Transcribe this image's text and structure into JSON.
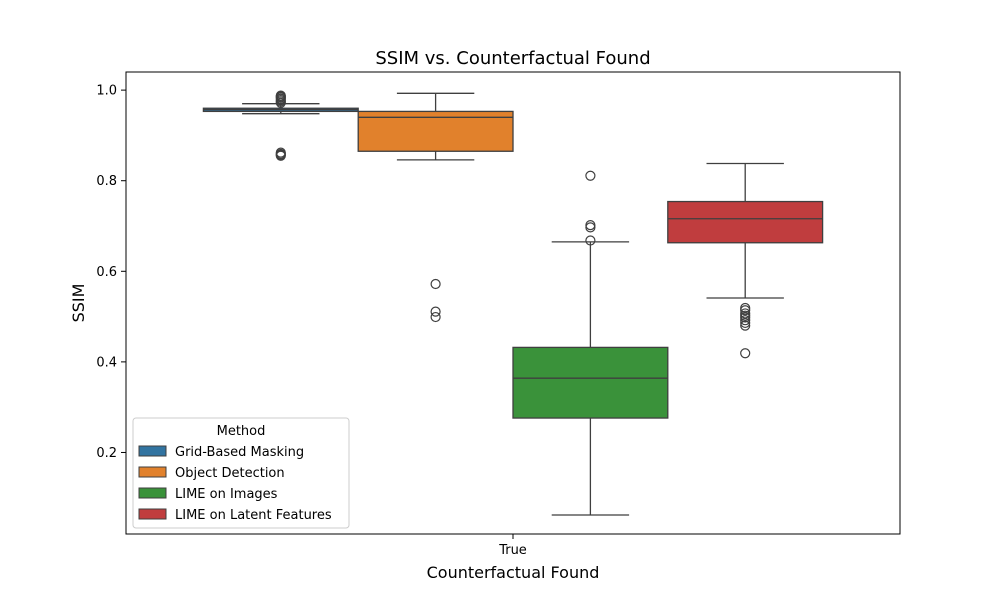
{
  "chart_data": {
    "type": "box",
    "title": "SSIM vs. Counterfactual Found",
    "xlabel": "Counterfactual Found",
    "ylabel": "SSIM",
    "categories": [
      "True"
    ],
    "ylim": [
      0.02,
      1.04
    ],
    "yticks": [
      0.2,
      0.4,
      0.6,
      0.8,
      1.0
    ],
    "ytick_labels": [
      "0.2",
      "0.4",
      "0.6",
      "0.8",
      "1.0"
    ],
    "grid": false,
    "legend": {
      "title": "Method",
      "position": "lower-left"
    },
    "series": [
      {
        "name": "Grid-Based Masking",
        "color": "#3274a1",
        "category": "True",
        "whisker_low": 0.948,
        "q1": 0.953,
        "median": 0.957,
        "q3": 0.96,
        "whisker_high": 0.97,
        "outliers": [
          0.978,
          0.981,
          0.984,
          0.986,
          0.988,
          0.975,
          0.972,
          0.862,
          0.859,
          0.857,
          0.855
        ]
      },
      {
        "name": "Object Detection",
        "color": "#e1812c",
        "category": "True",
        "whisker_low": 0.846,
        "q1": 0.865,
        "median": 0.94,
        "q3": 0.953,
        "whisker_high": 0.993,
        "outliers": [
          0.572,
          0.511,
          0.499
        ]
      },
      {
        "name": "LIME on Images",
        "color": "#3a923a",
        "category": "True",
        "whisker_low": 0.062,
        "q1": 0.276,
        "median": 0.364,
        "q3": 0.432,
        "whisker_high": 0.665,
        "outliers": [
          0.811,
          0.702,
          0.697,
          0.668
        ]
      },
      {
        "name": "LIME on Latent Features",
        "color": "#c03d3e",
        "category": "True",
        "whisker_low": 0.541,
        "q1": 0.663,
        "median": 0.716,
        "q3": 0.754,
        "whisker_high": 0.838,
        "outliers": [
          0.519,
          0.514,
          0.507,
          0.502,
          0.498,
          0.492,
          0.486,
          0.48,
          0.419
        ]
      }
    ]
  }
}
